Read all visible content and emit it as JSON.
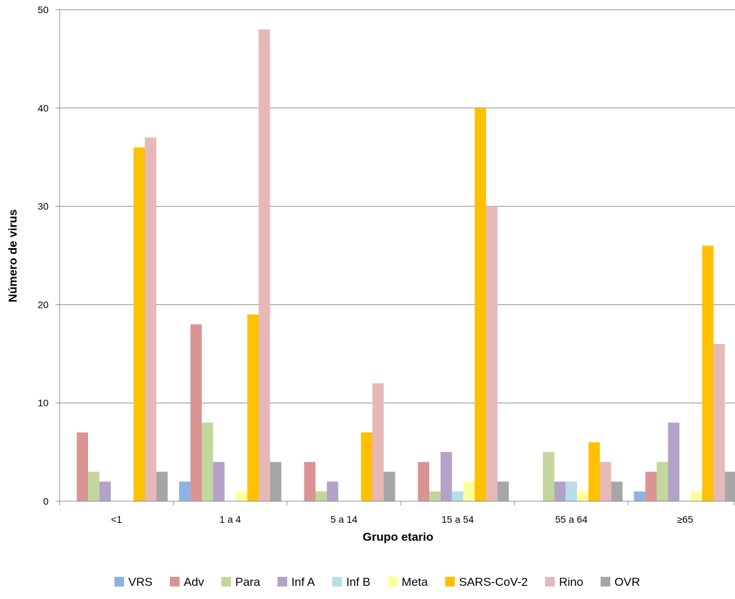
{
  "chart_data": {
    "type": "bar",
    "xlabel": "Grupo etario",
    "ylabel": "Número de virus",
    "ylim": [
      0,
      50
    ],
    "yticks": [
      0,
      10,
      20,
      30,
      40,
      50
    ],
    "grid": true,
    "legend_position": "bottom",
    "categories": [
      "<1",
      "1 a 4",
      "5 a 14",
      "15 a 54",
      "55 a 64",
      "≥65"
    ],
    "series": [
      {
        "name": "VRS",
        "color": "#8db3e2",
        "values": [
          0,
          2,
          0,
          0,
          0,
          1
        ]
      },
      {
        "name": "Adv",
        "color": "#d99594",
        "values": [
          7,
          18,
          4,
          4,
          0,
          3
        ]
      },
      {
        "name": "Para",
        "color": "#c3d69b",
        "values": [
          3,
          8,
          1,
          1,
          5,
          4
        ]
      },
      {
        "name": "Inf A",
        "color": "#b2a2c7",
        "values": [
          2,
          4,
          2,
          5,
          2,
          8
        ]
      },
      {
        "name": "Inf B",
        "color": "#b7dee8",
        "values": [
          0,
          0,
          0,
          1,
          2,
          0
        ]
      },
      {
        "name": "Meta",
        "color": "#ffff99",
        "values": [
          0,
          1,
          0,
          2,
          1,
          1
        ]
      },
      {
        "name": "SARS-CoV-2",
        "color": "#ffc000",
        "values": [
          36,
          19,
          7,
          40,
          6,
          26
        ]
      },
      {
        "name": "Rino",
        "color": "#e6b9b8",
        "values": [
          37,
          48,
          12,
          30,
          4,
          16
        ]
      },
      {
        "name": "OVR",
        "color": "#a6a6a6",
        "values": [
          3,
          4,
          3,
          2,
          2,
          3
        ]
      }
    ]
  }
}
